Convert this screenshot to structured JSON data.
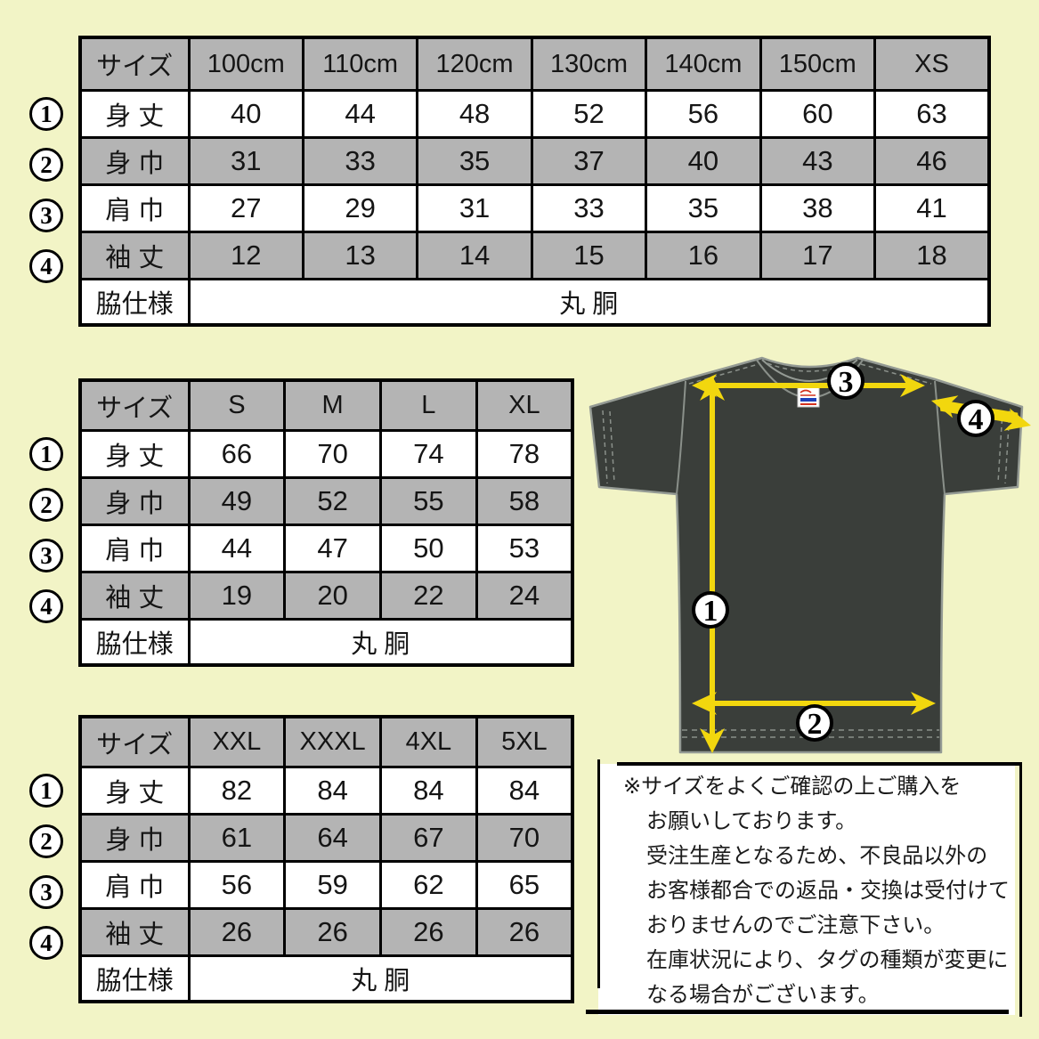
{
  "colors": {
    "background": "#f2f4c6",
    "table_shaded_row": "#b4b4b4",
    "table_border": "#000000",
    "shirt_body": "#3a3e3a",
    "shirt_outline": "#949a94",
    "arrow_yellow": "#f2d70e",
    "marker_circle_fill": "#ffffff",
    "tag_red": "#d4321e",
    "tag_blue": "#1d3fba"
  },
  "tables": [
    {
      "id": "kids",
      "header": [
        "サイズ",
        "100cm",
        "110cm",
        "120cm",
        "130cm",
        "140cm",
        "150cm",
        "XS"
      ],
      "rows": [
        {
          "label": "身 丈",
          "values": [
            "40",
            "44",
            "48",
            "52",
            "56",
            "60",
            "63"
          ]
        },
        {
          "label": "身 巾",
          "values": [
            "31",
            "33",
            "35",
            "37",
            "40",
            "43",
            "46"
          ]
        },
        {
          "label": "肩 巾",
          "values": [
            "27",
            "29",
            "31",
            "33",
            "35",
            "38",
            "41"
          ]
        },
        {
          "label": "袖 丈",
          "values": [
            "12",
            "13",
            "14",
            "15",
            "16",
            "17",
            "18"
          ]
        }
      ],
      "footer": {
        "label": "脇仕様",
        "value": "丸 胴"
      }
    },
    {
      "id": "adult",
      "header": [
        "サイズ",
        "S",
        "M",
        "L",
        "XL"
      ],
      "rows": [
        {
          "label": "身 丈",
          "values": [
            "66",
            "70",
            "74",
            "78"
          ]
        },
        {
          "label": "身 巾",
          "values": [
            "49",
            "52",
            "55",
            "58"
          ]
        },
        {
          "label": "肩 巾",
          "values": [
            "44",
            "47",
            "50",
            "53"
          ]
        },
        {
          "label": "袖 丈",
          "values": [
            "19",
            "20",
            "22",
            "24"
          ]
        }
      ],
      "footer": {
        "label": "脇仕様",
        "value": "丸 胴"
      }
    },
    {
      "id": "plus",
      "header": [
        "サイズ",
        "XXL",
        "XXXL",
        "4XL",
        "5XL"
      ],
      "rows": [
        {
          "label": "身 丈",
          "values": [
            "82",
            "84",
            "84",
            "84"
          ]
        },
        {
          "label": "身 巾",
          "values": [
            "61",
            "64",
            "67",
            "70"
          ]
        },
        {
          "label": "肩 巾",
          "values": [
            "56",
            "59",
            "62",
            "65"
          ]
        },
        {
          "label": "袖 丈",
          "values": [
            "26",
            "26",
            "26",
            "26"
          ]
        }
      ],
      "footer": {
        "label": "脇仕様",
        "value": "丸 胴"
      }
    }
  ],
  "row_markers": {
    "m1": "1",
    "m2": "2",
    "m3": "3",
    "m4": "4"
  },
  "diagram": {
    "markers": {
      "m1": "1",
      "m2": "2",
      "m3": "3",
      "m4": "4"
    }
  },
  "note": {
    "lines": [
      "※サイズをよくご確認の上ご購入を",
      "お願いしております。",
      "受注生産となるため、不良品以外の",
      "お客様都合での返品・交換は受付けて",
      "おりませんのでご注意下さい。",
      "在庫状況により、タグの種類が変更に",
      "なる場合がございます。"
    ]
  }
}
